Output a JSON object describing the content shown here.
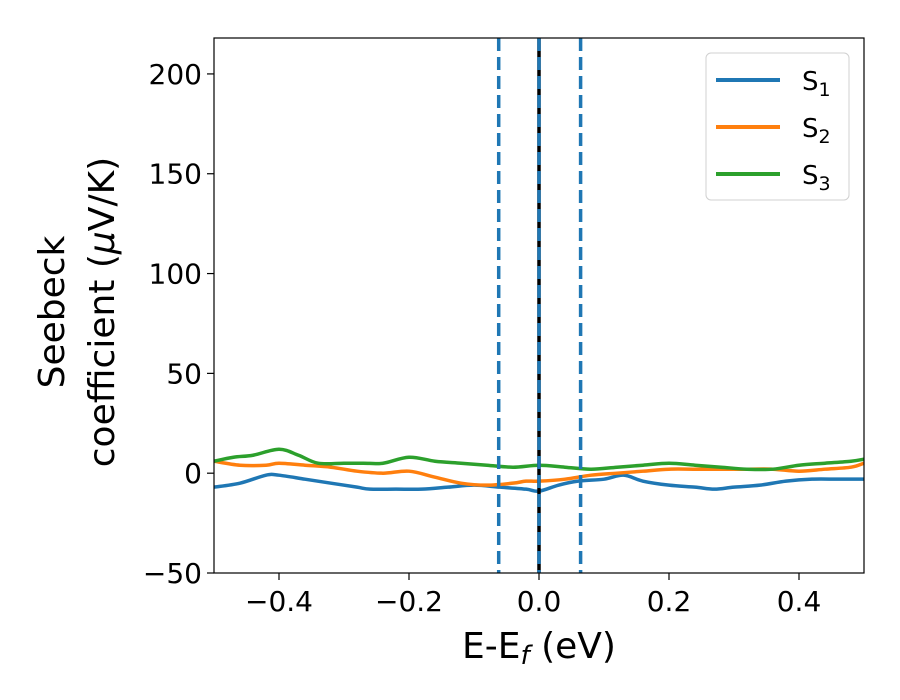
{
  "chart_data": {
    "type": "line",
    "xlabel": "E-E",
    "xlabel_sub": "f",
    "xlabel_unit": " (eV)",
    "ylabel_line1": "Seebeck",
    "ylabel_line2": "coefficient  (",
    "ylabel_mu": "μ",
    "ylabel_unit": "V/K)",
    "xlim": [
      -0.5,
      0.5
    ],
    "ylim": [
      -50,
      218
    ],
    "xticks": [
      -0.4,
      -0.2,
      0.0,
      0.2,
      0.4
    ],
    "xtick_labels": [
      "−0.4",
      "−0.2",
      "0.0",
      "0.2",
      "0.4"
    ],
    "yticks": [
      -50,
      0,
      50,
      100,
      150,
      200
    ],
    "ytick_labels": [
      "−50",
      "0",
      "50",
      "100",
      "150",
      "200"
    ],
    "grid": false,
    "legend_position": "top-right",
    "vlines": [
      {
        "x": -0.062,
        "style": "dashed",
        "color": "#1f77b4"
      },
      {
        "x": 0.0,
        "style": "solid",
        "color": "#000000"
      },
      {
        "x": 0.0,
        "style": "dashed",
        "color": "#1f77b4"
      },
      {
        "x": 0.064,
        "style": "dashed",
        "color": "#1f77b4"
      }
    ],
    "series": [
      {
        "name": "S",
        "sub": "1",
        "color": "#1f77b4",
        "x": [
          -0.5,
          -0.46,
          -0.42,
          -0.4,
          -0.36,
          -0.32,
          -0.28,
          -0.26,
          -0.22,
          -0.18,
          -0.14,
          -0.1,
          -0.06,
          -0.02,
          0.0,
          0.03,
          0.06,
          0.1,
          0.13,
          0.16,
          0.2,
          0.24,
          0.27,
          0.3,
          0.34,
          0.38,
          0.42,
          0.46,
          0.5
        ],
        "y": [
          -7,
          -5,
          -1,
          -1,
          -3,
          -5,
          -7,
          -8,
          -8,
          -8,
          -7,
          -6,
          -7,
          -8,
          -9,
          -6,
          -4,
          -3,
          -1,
          -4,
          -6,
          -7,
          -8,
          -7,
          -6,
          -4,
          -3,
          -3,
          -3
        ]
      },
      {
        "name": "S",
        "sub": "2",
        "color": "#ff7f0e",
        "x": [
          -0.5,
          -0.46,
          -0.42,
          -0.4,
          -0.36,
          -0.32,
          -0.28,
          -0.24,
          -0.2,
          -0.16,
          -0.12,
          -0.08,
          -0.04,
          -0.02,
          0.0,
          0.04,
          0.08,
          0.12,
          0.16,
          0.2,
          0.24,
          0.28,
          0.32,
          0.36,
          0.4,
          0.44,
          0.48,
          0.5
        ],
        "y": [
          6,
          4,
          4,
          5,
          4,
          3,
          1,
          0,
          1,
          -2,
          -5,
          -6,
          -5,
          -4,
          -4,
          -3,
          -1,
          0,
          1,
          2,
          2,
          2,
          2,
          2,
          1,
          2,
          3,
          5
        ]
      },
      {
        "name": "S",
        "sub": "3",
        "color": "#2ca02c",
        "x": [
          -0.5,
          -0.47,
          -0.44,
          -0.4,
          -0.37,
          -0.34,
          -0.3,
          -0.27,
          -0.24,
          -0.2,
          -0.16,
          -0.12,
          -0.08,
          -0.04,
          0.0,
          0.04,
          0.08,
          0.12,
          0.16,
          0.2,
          0.24,
          0.28,
          0.32,
          0.36,
          0.4,
          0.44,
          0.48,
          0.5
        ],
        "y": [
          6,
          8,
          9,
          12,
          9,
          5,
          5,
          5,
          5,
          8,
          6,
          5,
          4,
          3,
          4,
          3,
          2,
          3,
          4,
          5,
          4,
          3,
          2,
          2,
          4,
          5,
          6,
          7
        ]
      }
    ]
  }
}
